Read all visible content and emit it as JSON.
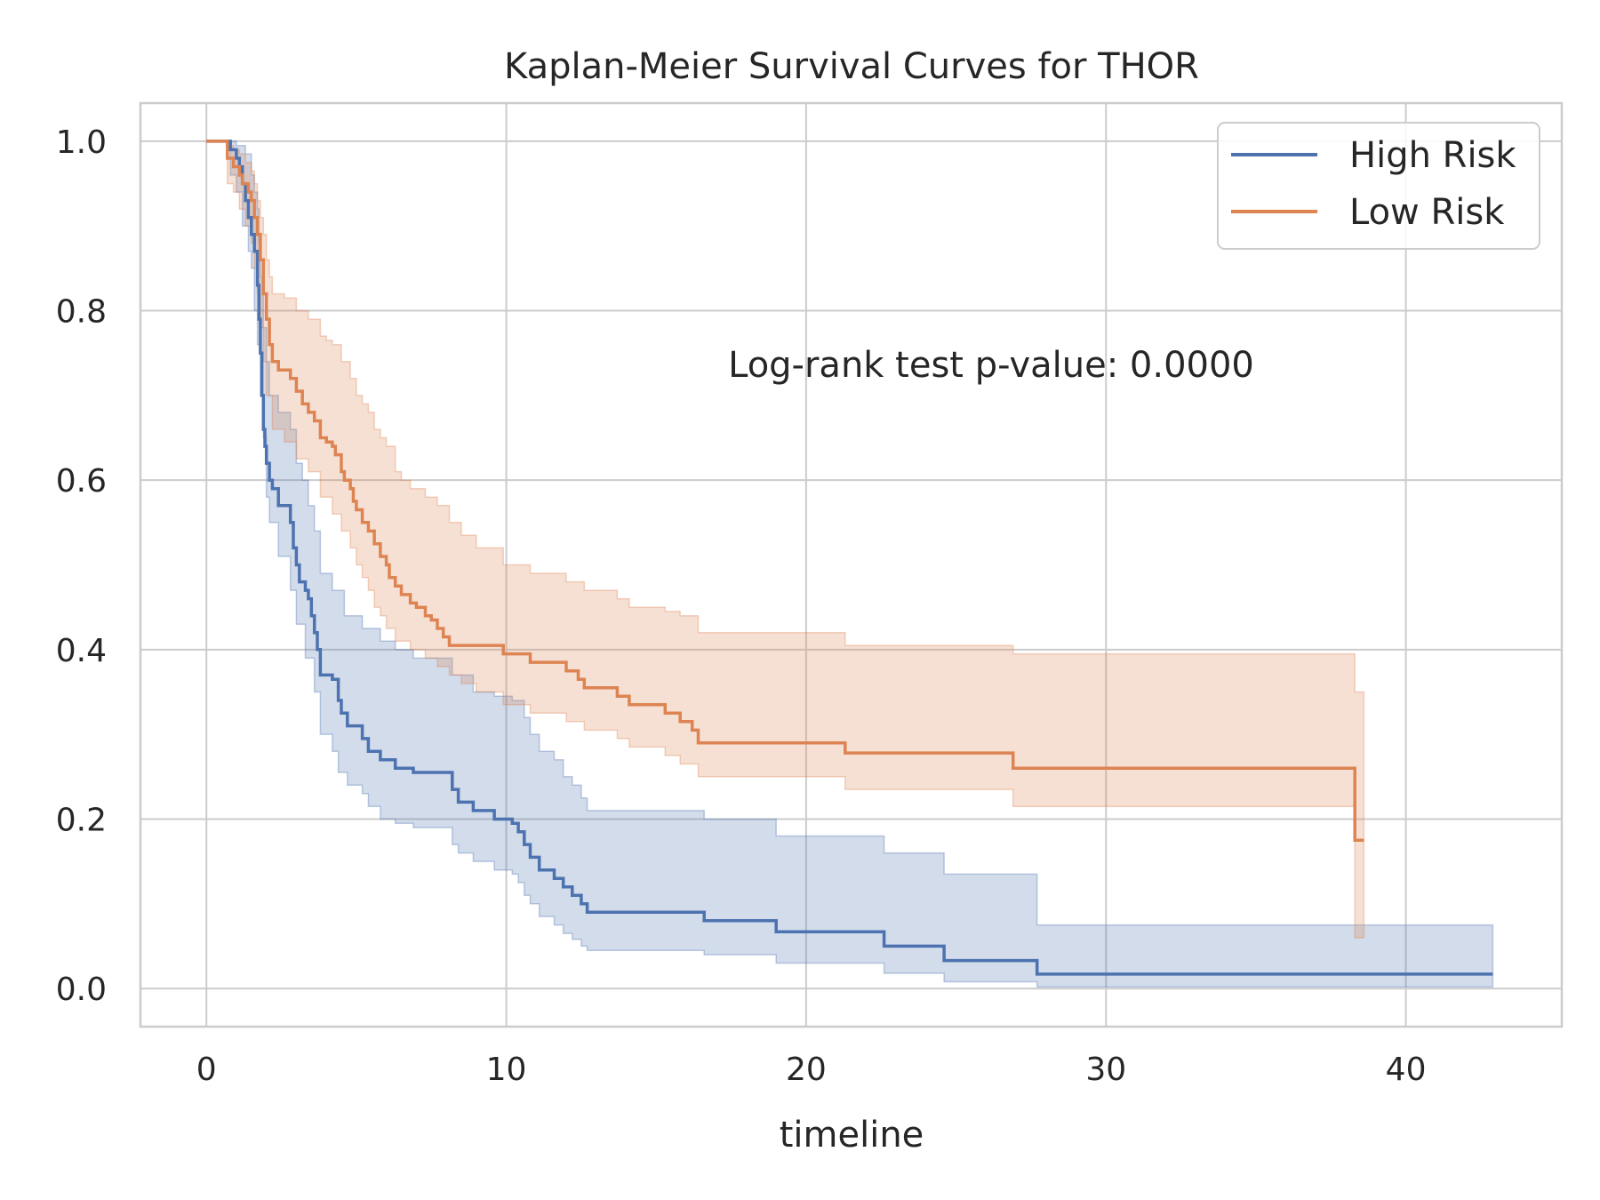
{
  "chart_data": {
    "type": "line",
    "title": "Kaplan-Meier Survival Curves for THOR",
    "xlabel": "timeline",
    "ylabel": "",
    "xlim": [
      -2.2,
      45.2
    ],
    "ylim": [
      -0.045,
      1.045
    ],
    "xticks": [
      0,
      10,
      20,
      30,
      40
    ],
    "xtick_labels": [
      "0",
      "10",
      "20",
      "30",
      "40"
    ],
    "yticks": [
      0.0,
      0.2,
      0.4,
      0.6,
      0.8,
      1.0
    ],
    "ytick_labels": [
      "0.0",
      "0.2",
      "0.4",
      "0.6",
      "0.8",
      "1.0"
    ],
    "grid": true,
    "legend_position": "top-right",
    "annotation": "Log-rank test p-value: 0.0000",
    "series": [
      {
        "name": "High Risk",
        "color": "#4c72b0",
        "points": [
          [
            0,
            1.0
          ],
          [
            0.6,
            1.0
          ],
          [
            0.8,
            0.99
          ],
          [
            1.0,
            0.98
          ],
          [
            1.1,
            0.97
          ],
          [
            1.2,
            0.95
          ],
          [
            1.3,
            0.93
          ],
          [
            1.4,
            0.91
          ],
          [
            1.5,
            0.89
          ],
          [
            1.6,
            0.87
          ],
          [
            1.7,
            0.83
          ],
          [
            1.75,
            0.79
          ],
          [
            1.8,
            0.75
          ],
          [
            1.85,
            0.7
          ],
          [
            1.9,
            0.66
          ],
          [
            1.95,
            0.64
          ],
          [
            2.0,
            0.62
          ],
          [
            2.1,
            0.6
          ],
          [
            2.2,
            0.59
          ],
          [
            2.4,
            0.57
          ],
          [
            2.8,
            0.55
          ],
          [
            2.9,
            0.52
          ],
          [
            3.0,
            0.5
          ],
          [
            3.1,
            0.48
          ],
          [
            3.3,
            0.47
          ],
          [
            3.4,
            0.46
          ],
          [
            3.5,
            0.44
          ],
          [
            3.6,
            0.42
          ],
          [
            3.7,
            0.4
          ],
          [
            3.8,
            0.37
          ],
          [
            4.2,
            0.365
          ],
          [
            4.4,
            0.34
          ],
          [
            4.5,
            0.325
          ],
          [
            4.7,
            0.31
          ],
          [
            5.2,
            0.295
          ],
          [
            5.4,
            0.28
          ],
          [
            5.8,
            0.27
          ],
          [
            6.3,
            0.26
          ],
          [
            6.9,
            0.255
          ],
          [
            8.2,
            0.235
          ],
          [
            8.4,
            0.22
          ],
          [
            8.9,
            0.21
          ],
          [
            9.6,
            0.2
          ],
          [
            10.2,
            0.195
          ],
          [
            10.4,
            0.185
          ],
          [
            10.6,
            0.17
          ],
          [
            10.8,
            0.155
          ],
          [
            11.1,
            0.14
          ],
          [
            11.6,
            0.13
          ],
          [
            11.9,
            0.12
          ],
          [
            12.2,
            0.11
          ],
          [
            12.5,
            0.1
          ],
          [
            12.7,
            0.09
          ],
          [
            16.6,
            0.08
          ],
          [
            19.0,
            0.067
          ],
          [
            22.6,
            0.05
          ],
          [
            24.6,
            0.033
          ],
          [
            27.7,
            0.017
          ],
          [
            42.9,
            0.017
          ]
        ],
        "ci_upper": [
          [
            0,
            1.0
          ],
          [
            0.6,
            1.0
          ],
          [
            1.0,
            0.995
          ],
          [
            1.3,
            0.985
          ],
          [
            1.5,
            0.96
          ],
          [
            1.6,
            0.94
          ],
          [
            1.7,
            0.92
          ],
          [
            1.75,
            0.88
          ],
          [
            1.8,
            0.84
          ],
          [
            1.9,
            0.78
          ],
          [
            2.0,
            0.74
          ],
          [
            2.1,
            0.7
          ],
          [
            2.4,
            0.68
          ],
          [
            2.8,
            0.66
          ],
          [
            3.0,
            0.62
          ],
          [
            3.2,
            0.6
          ],
          [
            3.4,
            0.57
          ],
          [
            3.6,
            0.54
          ],
          [
            3.8,
            0.49
          ],
          [
            4.2,
            0.47
          ],
          [
            4.6,
            0.44
          ],
          [
            5.2,
            0.425
          ],
          [
            5.8,
            0.41
          ],
          [
            6.3,
            0.4
          ],
          [
            6.9,
            0.39
          ],
          [
            8.2,
            0.37
          ],
          [
            8.9,
            0.35
          ],
          [
            9.6,
            0.345
          ],
          [
            10.2,
            0.34
          ],
          [
            10.6,
            0.32
          ],
          [
            10.8,
            0.3
          ],
          [
            11.1,
            0.28
          ],
          [
            11.6,
            0.27
          ],
          [
            11.9,
            0.25
          ],
          [
            12.2,
            0.24
          ],
          [
            12.5,
            0.225
          ],
          [
            12.7,
            0.21
          ],
          [
            16.6,
            0.2
          ],
          [
            19.0,
            0.18
          ],
          [
            22.6,
            0.16
          ],
          [
            24.6,
            0.135
          ],
          [
            27.7,
            0.075
          ],
          [
            42.9,
            0.075
          ]
        ],
        "ci_lower": [
          [
            0,
            1.0
          ],
          [
            0.6,
            1.0
          ],
          [
            0.8,
            0.96
          ],
          [
            1.0,
            0.94
          ],
          [
            1.2,
            0.9
          ],
          [
            1.4,
            0.87
          ],
          [
            1.5,
            0.85
          ],
          [
            1.6,
            0.8
          ],
          [
            1.7,
            0.76
          ],
          [
            1.8,
            0.7
          ],
          [
            1.9,
            0.65
          ],
          [
            2.0,
            0.58
          ],
          [
            2.1,
            0.55
          ],
          [
            2.4,
            0.51
          ],
          [
            2.8,
            0.47
          ],
          [
            3.0,
            0.43
          ],
          [
            3.3,
            0.39
          ],
          [
            3.6,
            0.35
          ],
          [
            3.8,
            0.3
          ],
          [
            4.2,
            0.28
          ],
          [
            4.4,
            0.255
          ],
          [
            4.7,
            0.24
          ],
          [
            5.2,
            0.23
          ],
          [
            5.4,
            0.215
          ],
          [
            5.8,
            0.2
          ],
          [
            6.3,
            0.195
          ],
          [
            6.9,
            0.19
          ],
          [
            8.2,
            0.17
          ],
          [
            8.4,
            0.16
          ],
          [
            8.9,
            0.15
          ],
          [
            9.6,
            0.14
          ],
          [
            10.2,
            0.135
          ],
          [
            10.4,
            0.125
          ],
          [
            10.6,
            0.11
          ],
          [
            10.8,
            0.1
          ],
          [
            11.1,
            0.085
          ],
          [
            11.6,
            0.075
          ],
          [
            11.9,
            0.065
          ],
          [
            12.2,
            0.058
          ],
          [
            12.5,
            0.05
          ],
          [
            12.7,
            0.045
          ],
          [
            16.6,
            0.04
          ],
          [
            19.0,
            0.03
          ],
          [
            22.6,
            0.018
          ],
          [
            24.6,
            0.008
          ],
          [
            27.7,
            0.002
          ],
          [
            42.9,
            0.002
          ]
        ]
      },
      {
        "name": "Low Risk",
        "color": "#dd8452",
        "points": [
          [
            0,
            1.0
          ],
          [
            0.5,
            1.0
          ],
          [
            0.7,
            0.98
          ],
          [
            0.9,
            0.97
          ],
          [
            1.1,
            0.96
          ],
          [
            1.2,
            0.95
          ],
          [
            1.4,
            0.94
          ],
          [
            1.5,
            0.93
          ],
          [
            1.6,
            0.91
          ],
          [
            1.7,
            0.89
          ],
          [
            1.8,
            0.86
          ],
          [
            1.9,
            0.82
          ],
          [
            2.0,
            0.79
          ],
          [
            2.1,
            0.76
          ],
          [
            2.2,
            0.74
          ],
          [
            2.4,
            0.73
          ],
          [
            2.8,
            0.72
          ],
          [
            3.0,
            0.705
          ],
          [
            3.2,
            0.69
          ],
          [
            3.4,
            0.68
          ],
          [
            3.6,
            0.67
          ],
          [
            3.8,
            0.65
          ],
          [
            4.0,
            0.645
          ],
          [
            4.2,
            0.64
          ],
          [
            4.3,
            0.63
          ],
          [
            4.5,
            0.61
          ],
          [
            4.6,
            0.6
          ],
          [
            4.8,
            0.59
          ],
          [
            4.9,
            0.575
          ],
          [
            5.0,
            0.565
          ],
          [
            5.2,
            0.55
          ],
          [
            5.4,
            0.54
          ],
          [
            5.6,
            0.525
          ],
          [
            5.8,
            0.51
          ],
          [
            6.0,
            0.5
          ],
          [
            6.1,
            0.485
          ],
          [
            6.3,
            0.475
          ],
          [
            6.5,
            0.465
          ],
          [
            6.8,
            0.455
          ],
          [
            7.0,
            0.45
          ],
          [
            7.3,
            0.44
          ],
          [
            7.5,
            0.435
          ],
          [
            7.7,
            0.425
          ],
          [
            7.9,
            0.415
          ],
          [
            8.1,
            0.405
          ],
          [
            9.9,
            0.395
          ],
          [
            10.8,
            0.385
          ],
          [
            12.0,
            0.375
          ],
          [
            12.4,
            0.365
          ],
          [
            12.6,
            0.355
          ],
          [
            13.7,
            0.345
          ],
          [
            14.1,
            0.335
          ],
          [
            15.3,
            0.325
          ],
          [
            15.8,
            0.315
          ],
          [
            16.2,
            0.305
          ],
          [
            16.4,
            0.29
          ],
          [
            21.3,
            0.278
          ],
          [
            26.9,
            0.26
          ],
          [
            38.3,
            0.175
          ],
          [
            38.6,
            0.175
          ]
        ],
        "ci_upper": [
          [
            0,
            1.0
          ],
          [
            0.5,
            1.0
          ],
          [
            0.7,
            0.995
          ],
          [
            0.9,
            0.99
          ],
          [
            1.1,
            0.985
          ],
          [
            1.3,
            0.975
          ],
          [
            1.5,
            0.965
          ],
          [
            1.6,
            0.95
          ],
          [
            1.7,
            0.93
          ],
          [
            1.8,
            0.91
          ],
          [
            1.9,
            0.89
          ],
          [
            2.0,
            0.86
          ],
          [
            2.1,
            0.84
          ],
          [
            2.2,
            0.82
          ],
          [
            2.6,
            0.815
          ],
          [
            3.0,
            0.8
          ],
          [
            3.4,
            0.79
          ],
          [
            3.8,
            0.77
          ],
          [
            4.0,
            0.765
          ],
          [
            4.2,
            0.76
          ],
          [
            4.5,
            0.74
          ],
          [
            4.8,
            0.72
          ],
          [
            5.0,
            0.7
          ],
          [
            5.2,
            0.69
          ],
          [
            5.4,
            0.68
          ],
          [
            5.6,
            0.66
          ],
          [
            5.8,
            0.65
          ],
          [
            6.0,
            0.64
          ],
          [
            6.3,
            0.61
          ],
          [
            6.5,
            0.6
          ],
          [
            6.8,
            0.59
          ],
          [
            7.3,
            0.58
          ],
          [
            7.7,
            0.57
          ],
          [
            8.1,
            0.55
          ],
          [
            8.5,
            0.535
          ],
          [
            9.0,
            0.52
          ],
          [
            9.9,
            0.5
          ],
          [
            10.8,
            0.49
          ],
          [
            12.0,
            0.48
          ],
          [
            12.6,
            0.47
          ],
          [
            13.7,
            0.46
          ],
          [
            14.1,
            0.45
          ],
          [
            15.3,
            0.445
          ],
          [
            15.8,
            0.44
          ],
          [
            16.4,
            0.42
          ],
          [
            21.3,
            0.405
          ],
          [
            26.9,
            0.395
          ],
          [
            38.3,
            0.35
          ],
          [
            38.6,
            0.35
          ]
        ],
        "ci_lower": [
          [
            0,
            1.0
          ],
          [
            0.5,
            1.0
          ],
          [
            0.7,
            0.95
          ],
          [
            0.9,
            0.94
          ],
          [
            1.1,
            0.92
          ],
          [
            1.3,
            0.9
          ],
          [
            1.5,
            0.88
          ],
          [
            1.6,
            0.85
          ],
          [
            1.7,
            0.82
          ],
          [
            1.8,
            0.78
          ],
          [
            1.9,
            0.74
          ],
          [
            2.0,
            0.7
          ],
          [
            2.2,
            0.66
          ],
          [
            2.6,
            0.645
          ],
          [
            3.0,
            0.625
          ],
          [
            3.4,
            0.61
          ],
          [
            3.8,
            0.58
          ],
          [
            4.2,
            0.56
          ],
          [
            4.5,
            0.54
          ],
          [
            4.8,
            0.52
          ],
          [
            5.0,
            0.5
          ],
          [
            5.2,
            0.485
          ],
          [
            5.4,
            0.47
          ],
          [
            5.6,
            0.45
          ],
          [
            5.8,
            0.44
          ],
          [
            6.0,
            0.425
          ],
          [
            6.3,
            0.41
          ],
          [
            6.8,
            0.4
          ],
          [
            7.3,
            0.39
          ],
          [
            7.7,
            0.38
          ],
          [
            8.1,
            0.37
          ],
          [
            8.5,
            0.36
          ],
          [
            9.0,
            0.35
          ],
          [
            9.9,
            0.335
          ],
          [
            10.8,
            0.325
          ],
          [
            12.0,
            0.315
          ],
          [
            12.6,
            0.305
          ],
          [
            13.7,
            0.295
          ],
          [
            14.1,
            0.285
          ],
          [
            15.3,
            0.275
          ],
          [
            15.8,
            0.265
          ],
          [
            16.4,
            0.25
          ],
          [
            21.3,
            0.235
          ],
          [
            26.9,
            0.215
          ],
          [
            38.3,
            0.06
          ],
          [
            38.6,
            0.06
          ]
        ]
      }
    ]
  }
}
